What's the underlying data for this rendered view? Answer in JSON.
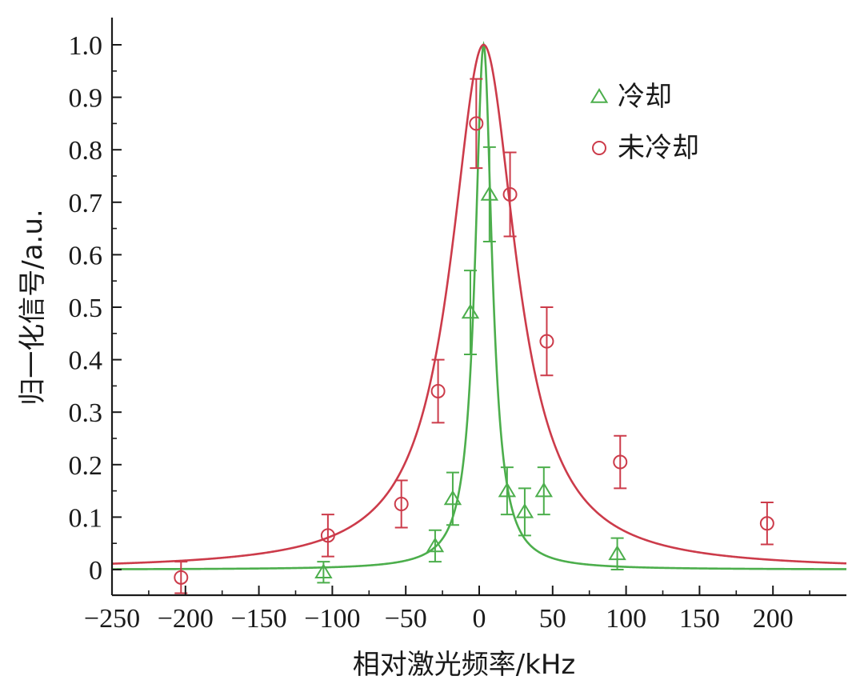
{
  "chart_data": {
    "type": "scatter",
    "title": "",
    "xlabel": "相对激光频率/kHz",
    "ylabel": "归一化信号/a.u.",
    "xlim": [
      -250,
      250
    ],
    "ylim": [
      -0.05,
      1.05
    ],
    "x_ticks": [
      -250,
      -200,
      -150,
      -100,
      -50,
      0,
      50,
      100,
      150,
      200
    ],
    "x_tick_labels": [
      "−250",
      "−200",
      "−150",
      "−100",
      "−50",
      "0",
      "50",
      "100",
      "150",
      "200"
    ],
    "y_ticks": [
      0,
      0.1,
      0.2,
      0.3,
      0.4,
      0.5,
      0.6,
      0.7,
      0.8,
      0.9,
      1.0
    ],
    "y_tick_labels": [
      "0",
      "0.1",
      "0.2",
      "0.3",
      "0.4",
      "0.5",
      "0.6",
      "0.7",
      "0.8",
      "0.9",
      "1.0"
    ],
    "grid": false,
    "legend_position": "top-right",
    "series": [
      {
        "name": "冷却",
        "marker": "triangle",
        "color": "#4cae4c",
        "points": [
          {
            "x": -106,
            "y": -0.005,
            "err": 0.02
          },
          {
            "x": -30,
            "y": 0.045,
            "err": 0.03
          },
          {
            "x": -18,
            "y": 0.135,
            "err": 0.05
          },
          {
            "x": -6,
            "y": 0.49,
            "err": 0.08
          },
          {
            "x": 7,
            "y": 0.715,
            "err": 0.09
          },
          {
            "x": 19,
            "y": 0.15,
            "err": 0.045
          },
          {
            "x": 31,
            "y": 0.11,
            "err": 0.045
          },
          {
            "x": 44,
            "y": 0.15,
            "err": 0.045
          },
          {
            "x": 94,
            "y": 0.03,
            "err": 0.03
          }
        ],
        "fit": {
          "type": "lorentzian",
          "center": 3,
          "hwhm": 7,
          "amplitude": 1.0
        }
      },
      {
        "name": "未冷却",
        "marker": "circle",
        "color": "#cc3b4a",
        "points": [
          {
            "x": -203,
            "y": -0.015,
            "err": 0.03
          },
          {
            "x": -103,
            "y": 0.065,
            "err": 0.04
          },
          {
            "x": -53,
            "y": 0.125,
            "err": 0.045
          },
          {
            "x": -28,
            "y": 0.34,
            "err": 0.06
          },
          {
            "x": -2,
            "y": 0.85,
            "err": 0.085
          },
          {
            "x": 21,
            "y": 0.715,
            "err": 0.08
          },
          {
            "x": 46,
            "y": 0.435,
            "err": 0.065
          },
          {
            "x": 96,
            "y": 0.205,
            "err": 0.05
          },
          {
            "x": 196,
            "y": 0.088,
            "err": 0.04
          }
        ],
        "fit": {
          "type": "lorentzian",
          "center": 3,
          "hwhm": 27,
          "amplitude": 1.0
        }
      }
    ]
  }
}
